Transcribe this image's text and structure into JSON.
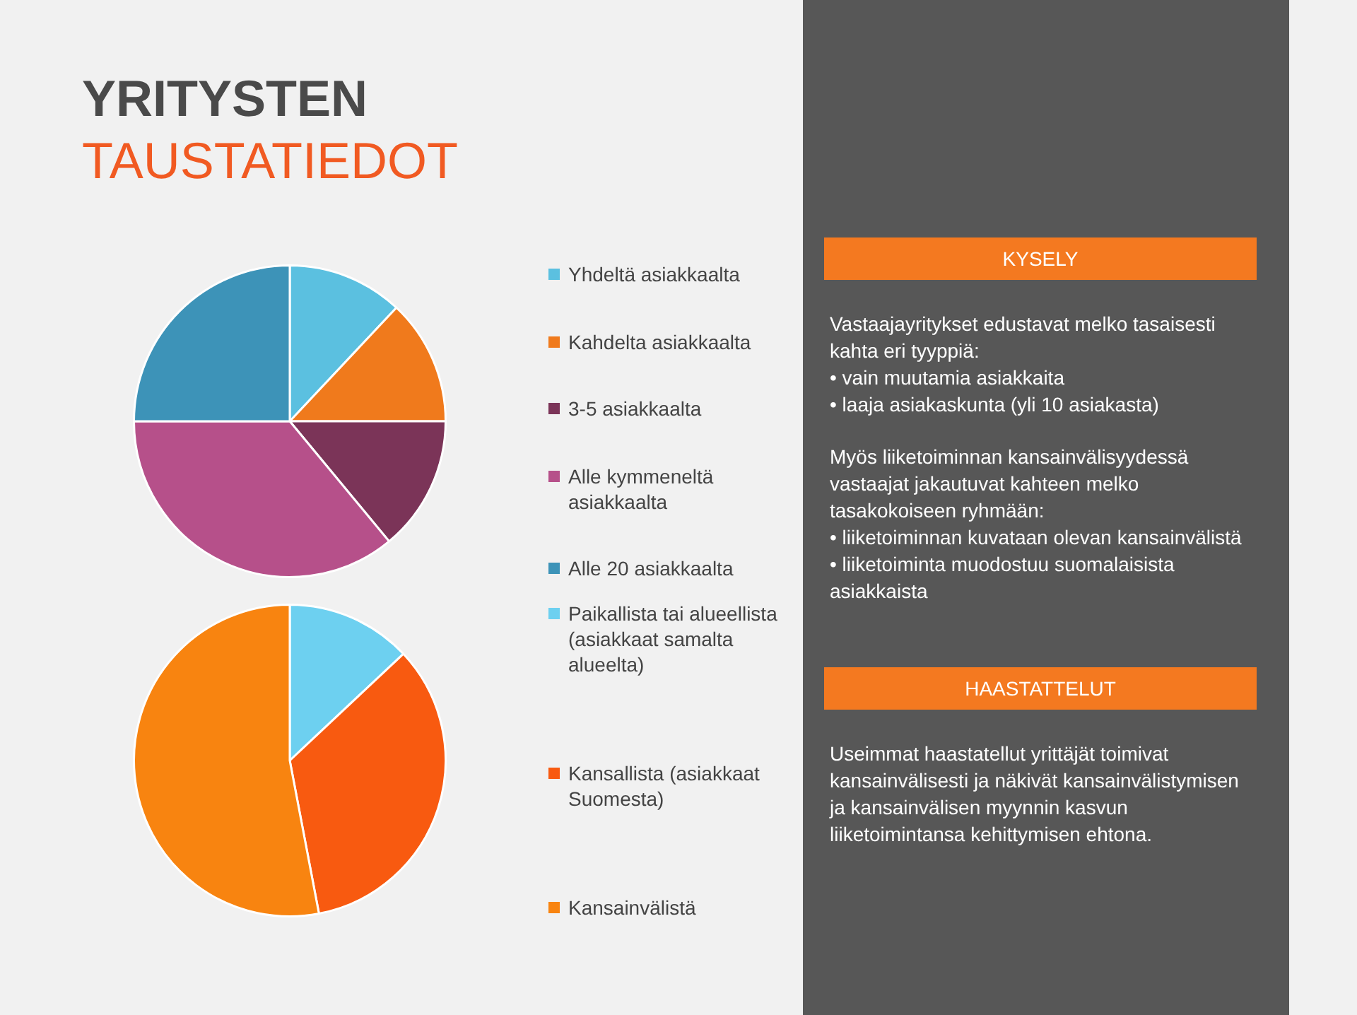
{
  "chart_data": [
    {
      "type": "pie",
      "title": "YRITYSTEN TAUSTATIEDOT",
      "categories": [
        "Yhdeltä asiakkaalta",
        "Kahdelta asiakkaalta",
        "3-5 asiakkaalta",
        "Alle kymmeneltä asiakkaalta",
        "Alle 20 asiakkaalta"
      ],
      "values": [
        12,
        13,
        14,
        36,
        25
      ],
      "colors": [
        "#5bc0e0",
        "#f07a1c",
        "#7b3458",
        "#b6508a",
        "#3d93b8"
      ],
      "legend": "right"
    },
    {
      "type": "pie",
      "categories": [
        "Paikallista tai alueellista (asiakkaat samalta alueelta)",
        "Kansallista (asiakkaat Suomesta)",
        "Kansainvälistä"
      ],
      "values": [
        13,
        34,
        53
      ],
      "colors": [
        "#6dd0f0",
        "#f85a10",
        "#f88410"
      ],
      "legend": "right"
    },
    {
      "type": "other",
      "title": "KYSELY",
      "annotations": [
        "Vastaajayritykset edustavat melko tasaisesti kahta eri tyyppiä:",
        "• vain muutamia asiakkaita",
        "• laaja asiakaskunta (yli 10 asiakasta)",
        "Myös liiketoiminnan kansainvälisyydessä vastaajat jakautuvat kahteen melko tasakokoiseen ryhmään:",
        "• liiketoiminnan kuvataan olevan kansainvälistä",
        "• liiketoiminta muodostuu suomalaisista asiakkaista"
      ]
    },
    {
      "type": "other",
      "title": "HAASTATTELUT",
      "annotations": [
        "Useimmat haastatellut yrittäjät toimivat kansainvälisesti ja näkivät kansainvälistymisen ja kansainvälisen myynnin kasvun liiketoimintansa kehittymisen ehtona."
      ]
    }
  ]
}
